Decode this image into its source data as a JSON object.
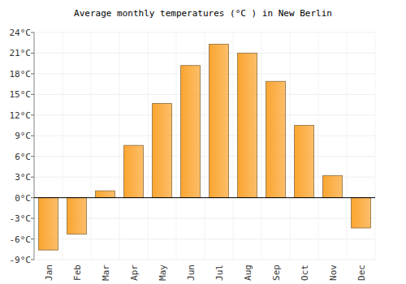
{
  "chart_data": {
    "type": "bar",
    "title": "Average monthly temperatures (°C ) in New Berlin",
    "categories": [
      "Jan",
      "Feb",
      "Mar",
      "Apr",
      "May",
      "Jun",
      "Jul",
      "Aug",
      "Sep",
      "Oct",
      "Nov",
      "Dec"
    ],
    "values": [
      -7.6,
      -5.3,
      1.0,
      7.6,
      13.7,
      19.2,
      22.3,
      21.0,
      16.9,
      10.5,
      3.2,
      -4.4
    ],
    "color": "#fba530",
    "ylim": [
      -9,
      24
    ],
    "yticks": [
      {
        "value": -9,
        "label": "-9°C"
      },
      {
        "value": -6,
        "label": "-6°C"
      },
      {
        "value": -3,
        "label": "-3°C"
      },
      {
        "value": 0,
        "label": "0°C"
      },
      {
        "value": 3,
        "label": "3°C"
      },
      {
        "value": 6,
        "label": "6°C"
      },
      {
        "value": 9,
        "label": "9°C"
      },
      {
        "value": 12,
        "label": "12°C"
      },
      {
        "value": 15,
        "label": "15°C"
      },
      {
        "value": 18,
        "label": "18°C"
      },
      {
        "value": 21,
        "label": "21°C"
      },
      {
        "value": 24,
        "label": "24°C"
      }
    ],
    "grid": true
  }
}
